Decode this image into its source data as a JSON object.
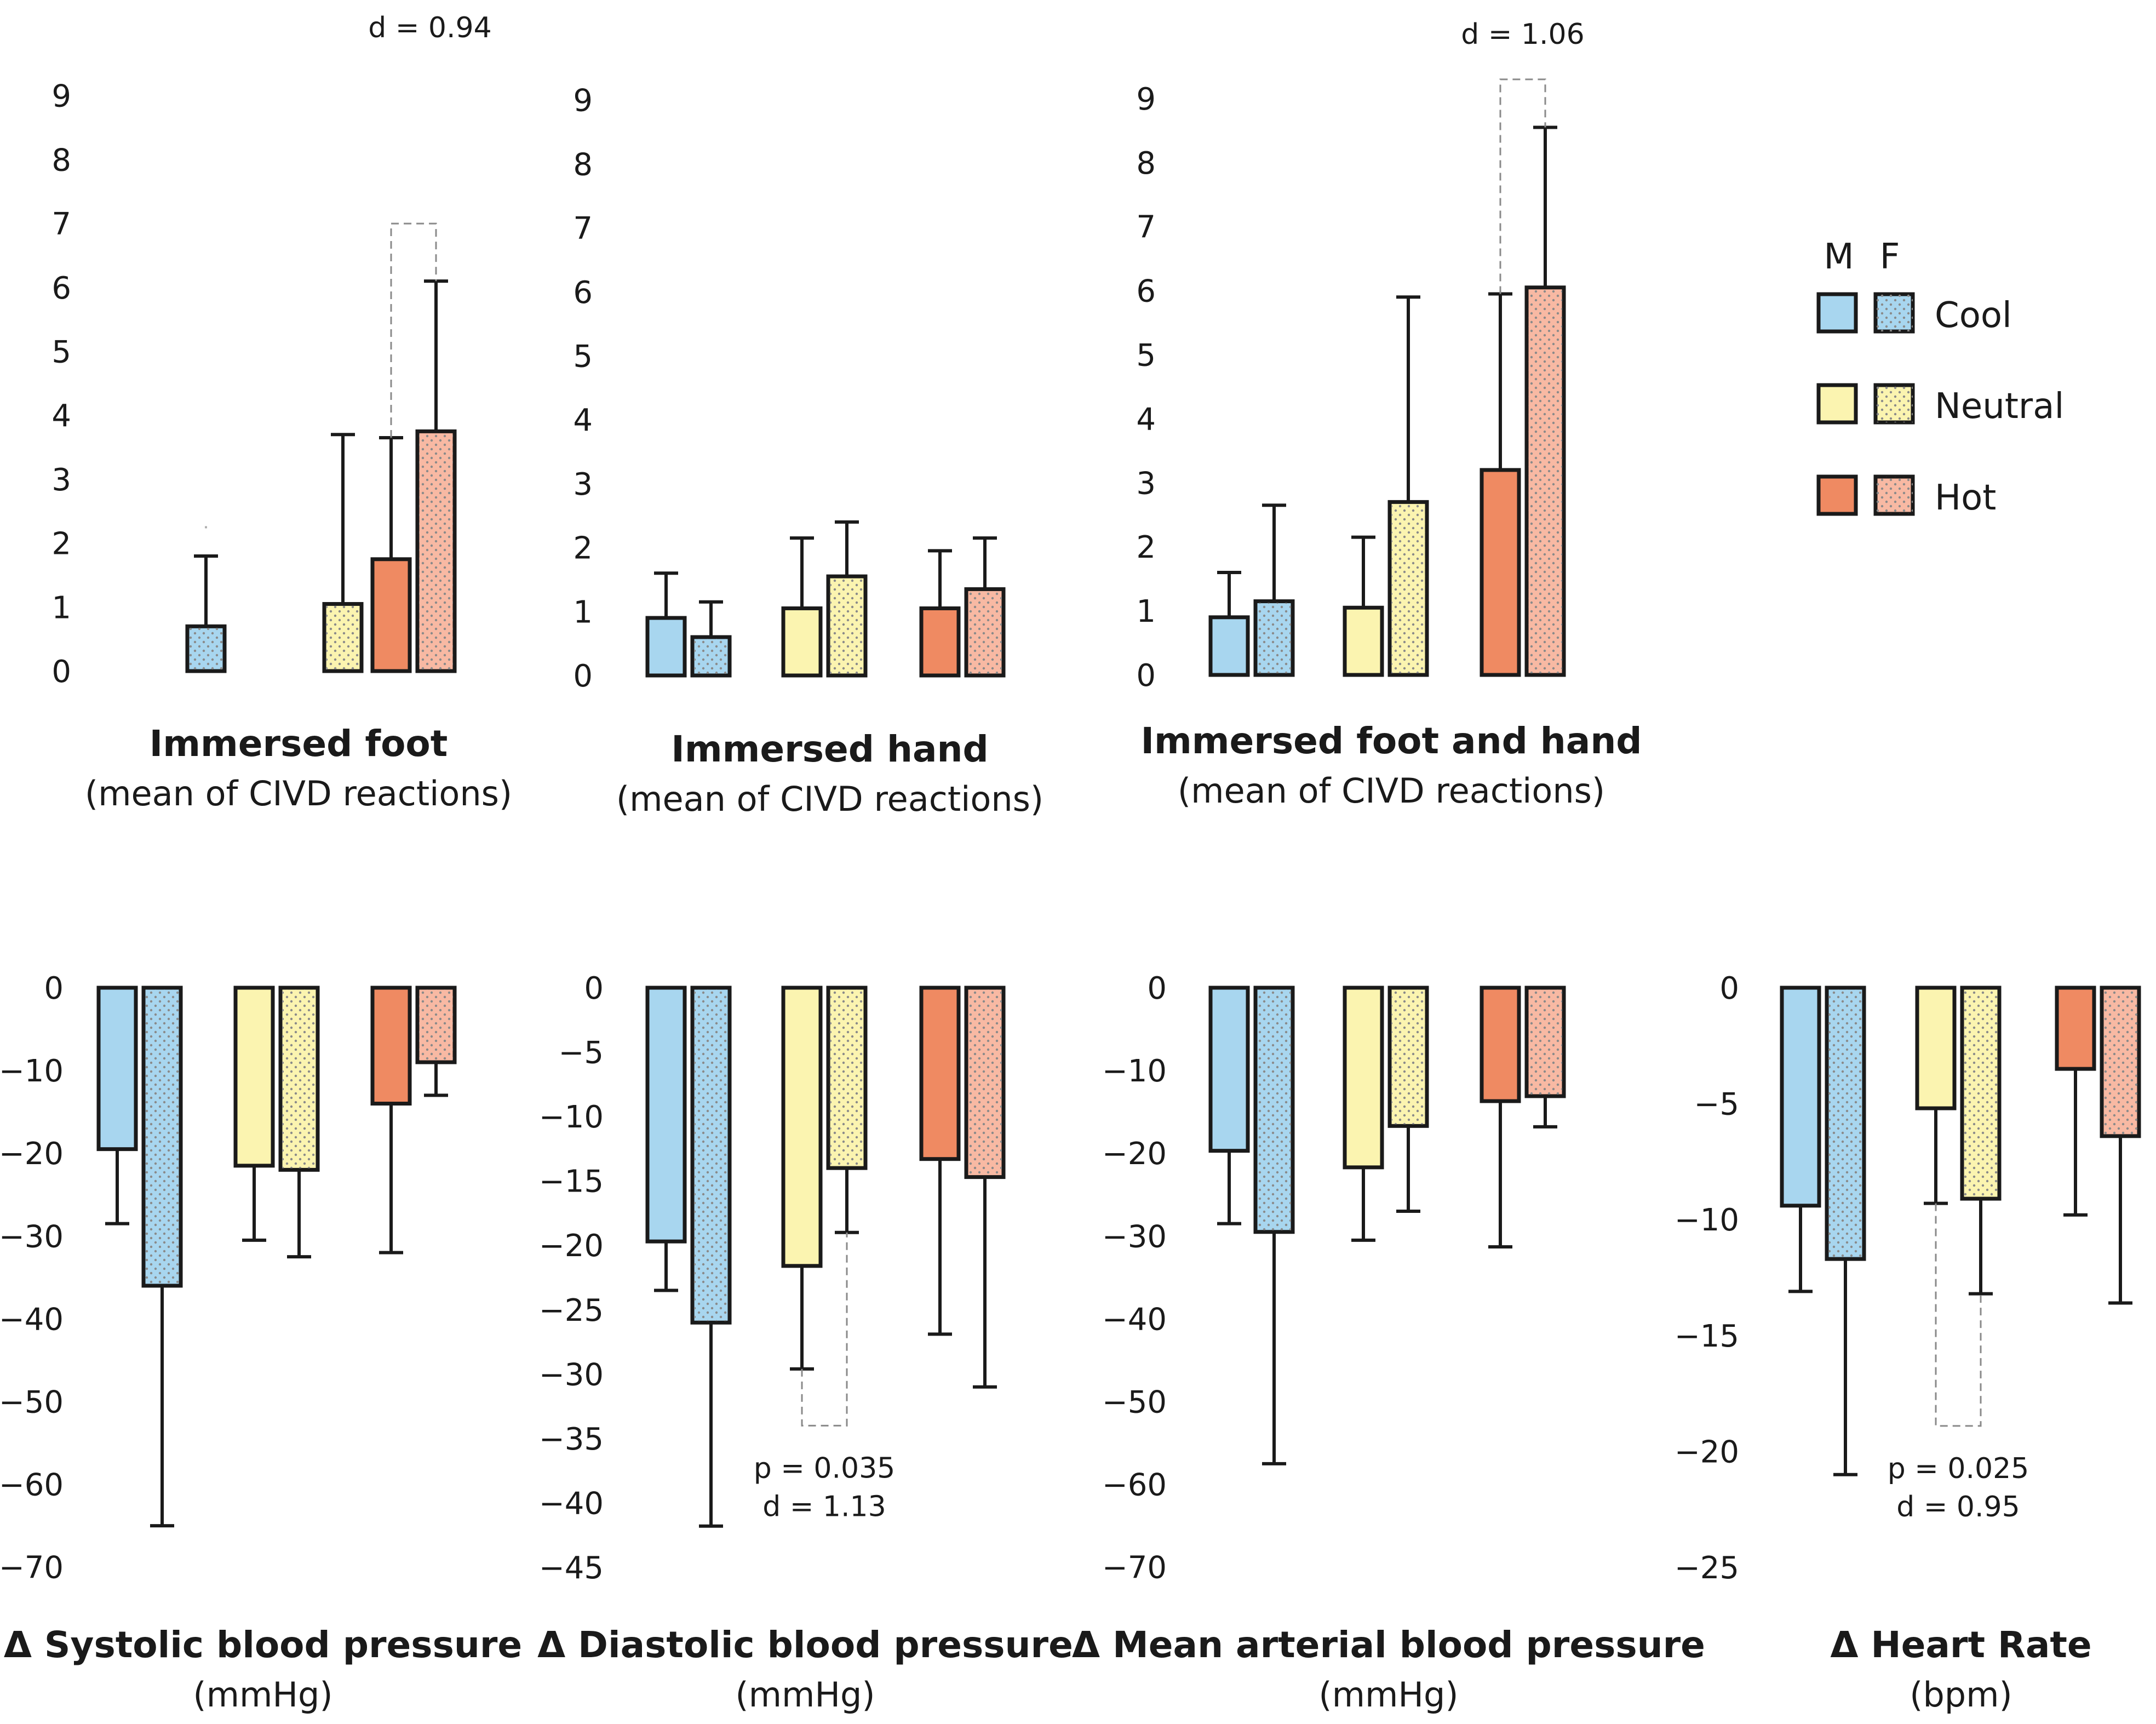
{
  "colors": {
    "cool": "#a8d6ef",
    "neutral": "#fbf4b0",
    "hot": "#ef8a62",
    "hot_female": "#f8b9a3",
    "outline": "#1a1a1a",
    "dotted_pattern": "#8a8a8a"
  },
  "legend": {
    "sex_male": "M",
    "sex_female": "F",
    "cool_label": "Cool",
    "neutral_label": "Neutral",
    "hot_label": "Hot"
  },
  "chart_data": [
    {
      "type": "bar",
      "title": "Immersed foot",
      "subtitle": "(mean of CIVD reactions)",
      "yticks": [
        "0",
        "1",
        "2",
        "3",
        "4",
        "5",
        "6",
        "7",
        "8",
        "9"
      ],
      "ylim": [
        0,
        9
      ],
      "categories": [
        "Cool",
        "Neutral",
        "Hot"
      ],
      "series": [
        {
          "name": "M",
          "values": [
            null,
            null,
            1.75
          ],
          "errors": [
            null,
            null,
            1.9
          ]
        },
        {
          "name": "F",
          "values": [
            0.7,
            1.05,
            3.75
          ],
          "errors": [
            1.1,
            2.65,
            2.35
          ]
        }
      ],
      "annotations": [
        {
          "text": "d = 0.94",
          "bracket_category": "Hot",
          "bracket_level": 7.0
        }
      ],
      "stray_mark_level": 2.25
    },
    {
      "type": "bar",
      "title": "Immersed hand",
      "subtitle": "(mean of CIVD reactions)",
      "yticks": [
        "0",
        "1",
        "2",
        "3",
        "4",
        "5",
        "6",
        "7",
        "8",
        "9"
      ],
      "ylim": [
        0,
        9
      ],
      "categories": [
        "Cool",
        "Neutral",
        "Hot"
      ],
      "series": [
        {
          "name": "M",
          "values": [
            0.9,
            1.05,
            1.05
          ],
          "errors": [
            0.7,
            1.1,
            0.9
          ]
        },
        {
          "name": "F",
          "values": [
            0.6,
            1.55,
            1.35
          ],
          "errors": [
            0.55,
            0.85,
            0.8
          ]
        }
      ],
      "annotations": []
    },
    {
      "type": "bar",
      "title": "Immersed foot and hand",
      "subtitle": "(mean of CIVD reactions)",
      "yticks": [
        "0",
        "1",
        "2",
        "3",
        "4",
        "5",
        "6",
        "7",
        "8",
        "9"
      ],
      "ylim": [
        0,
        9
      ],
      "categories": [
        "Cool",
        "Neutral",
        "Hot"
      ],
      "series": [
        {
          "name": "M",
          "values": [
            0.9,
            1.05,
            3.2
          ],
          "errors": [
            0.7,
            1.1,
            2.75
          ]
        },
        {
          "name": "F",
          "values": [
            1.15,
            2.7,
            6.05
          ],
          "errors": [
            1.5,
            3.2,
            2.5
          ]
        }
      ],
      "annotations": [
        {
          "text": "d = 1.06",
          "bracket_category": "Hot",
          "bracket_level": 9.3
        }
      ]
    },
    {
      "type": "bar",
      "title": "Δ Systolic blood pressure",
      "subtitle": "(mmHg)",
      "yticks": [
        "0",
        "−10",
        "−20",
        "−30",
        "−40",
        "−50",
        "−60",
        "−70"
      ],
      "ylim": [
        -70,
        0
      ],
      "categories": [
        "Cool",
        "Neutral",
        "Hot"
      ],
      "series": [
        {
          "name": "M",
          "values": [
            -19.5,
            -21.5,
            -14
          ],
          "errors": [
            9,
            9,
            18
          ]
        },
        {
          "name": "F",
          "values": [
            -36,
            -22,
            -9
          ],
          "errors": [
            29,
            10.5,
            4
          ]
        }
      ],
      "annotations": []
    },
    {
      "type": "bar",
      "title": "Δ Diastolic blood pressure",
      "subtitle": "(mmHg)",
      "yticks": [
        "0",
        "−5",
        "−10",
        "−15",
        "−20",
        "−25",
        "−30",
        "−35",
        "−40",
        "−45"
      ],
      "ylim": [
        -45,
        0
      ],
      "categories": [
        "Cool",
        "Neutral",
        "Hot"
      ],
      "series": [
        {
          "name": "M",
          "values": [
            -19.7,
            -21.6,
            -13.3
          ],
          "errors": [
            3.8,
            8,
            13.6
          ]
        },
        {
          "name": "F",
          "values": [
            -26,
            -14,
            -14.7
          ],
          "errors": [
            15.8,
            5,
            16.3
          ]
        }
      ],
      "annotations": [
        {
          "text": "p = 0.035",
          "bracket_category": "Neutral",
          "bracket_level": -34
        },
        {
          "text": "d = 1.13"
        }
      ]
    },
    {
      "type": "bar",
      "title": "Δ Mean arterial blood pressure",
      "subtitle": "(mmHg)",
      "yticks": [
        "0",
        "−10",
        "−20",
        "−30",
        "−40",
        "−50",
        "−60",
        "−70"
      ],
      "ylim": [
        -70,
        0
      ],
      "categories": [
        "Cool",
        "Neutral",
        "Hot"
      ],
      "series": [
        {
          "name": "M",
          "values": [
            -19.7,
            -21.7,
            -13.7
          ],
          "errors": [
            8.8,
            8.8,
            17.6
          ]
        },
        {
          "name": "F",
          "values": [
            -29.5,
            -16.7,
            -13.1
          ],
          "errors": [
            28,
            10.3,
            3.7
          ]
        }
      ],
      "annotations": []
    },
    {
      "type": "bar",
      "title": "Δ Heart Rate",
      "subtitle": "(bpm)",
      "yticks": [
        "0",
        "−5",
        "−10",
        "−15",
        "−20",
        "−25"
      ],
      "ylim": [
        -25,
        0
      ],
      "categories": [
        "Cool",
        "Neutral",
        "Hot"
      ],
      "series": [
        {
          "name": "M",
          "values": [
            -9.4,
            -5.2,
            -3.5
          ],
          "errors": [
            3.7,
            4.1,
            6.3
          ]
        },
        {
          "name": "F",
          "values": [
            -11.7,
            -9.1,
            -6.4
          ],
          "errors": [
            9.3,
            4.1,
            7.2
          ]
        }
      ],
      "annotations": [
        {
          "text": "p = 0.025",
          "bracket_category": "Neutral",
          "bracket_level": -18.9
        },
        {
          "text": "d = 0.95"
        }
      ]
    }
  ]
}
